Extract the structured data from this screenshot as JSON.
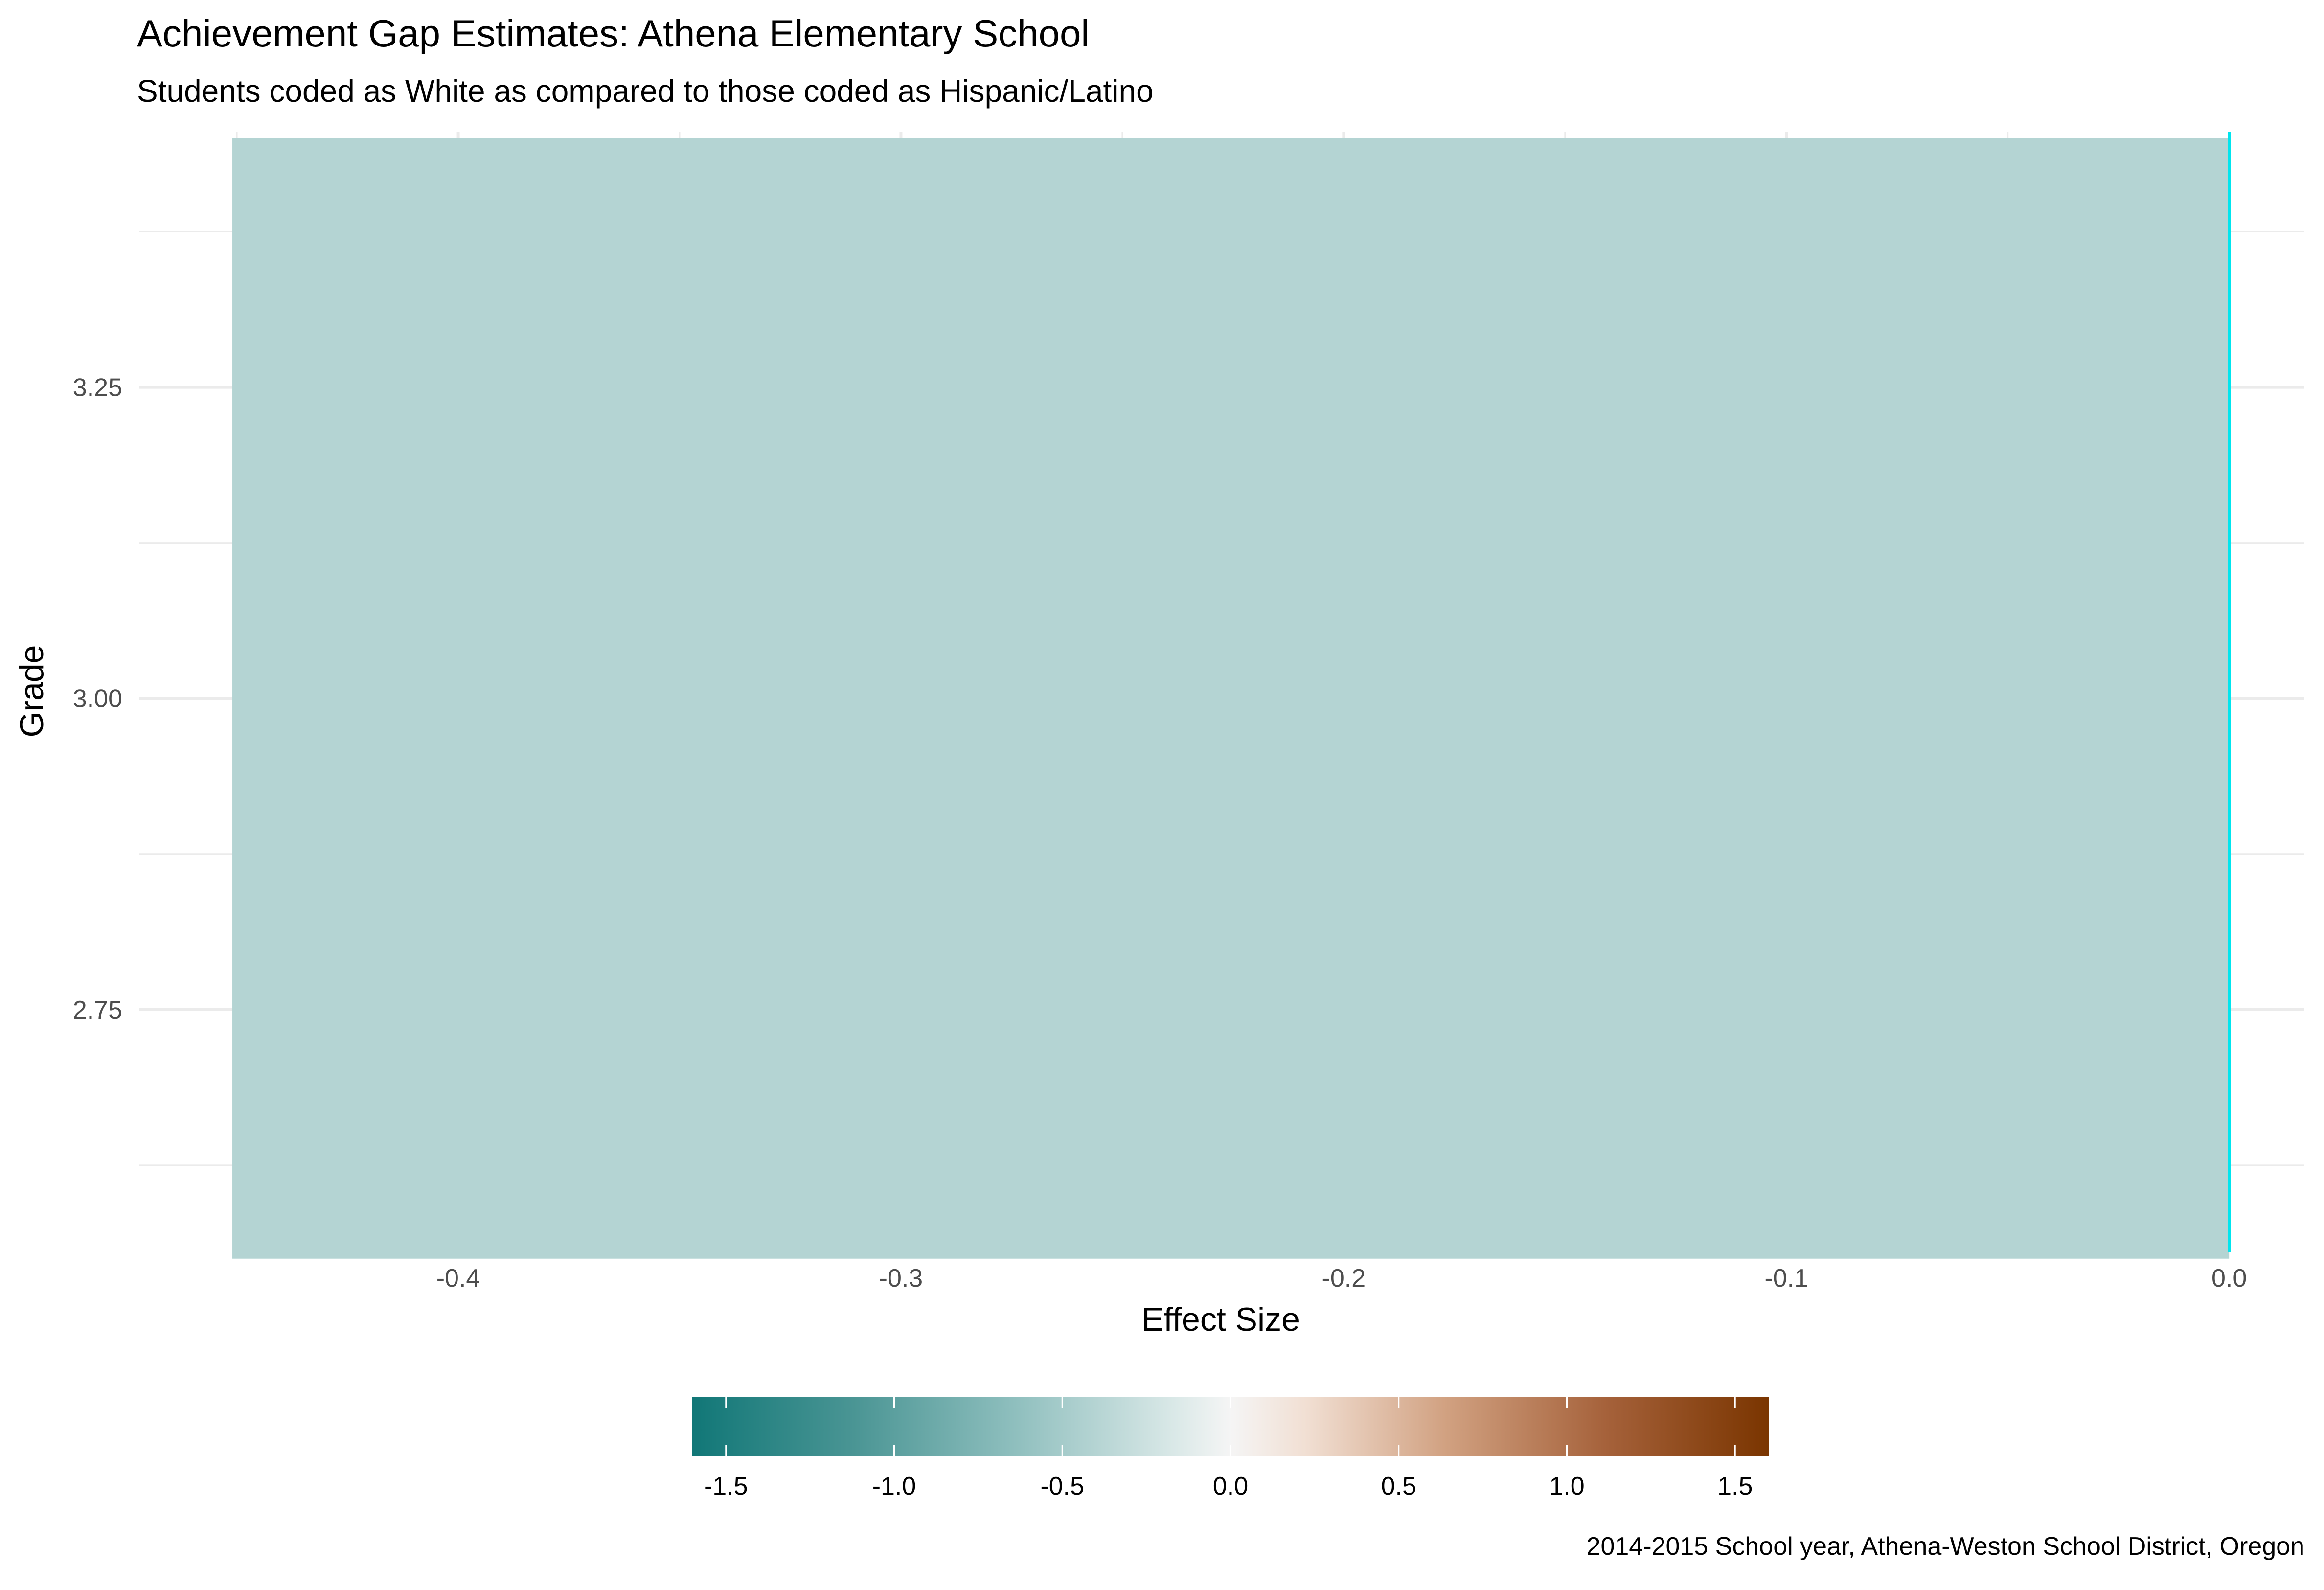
{
  "chart_data": {
    "type": "bar",
    "title": "Achievement Gap Estimates: Athena Elementary School",
    "subtitle": "Students coded as White as compared to those coded as Hispanic/Latino",
    "caption": "2014-2015 School year, Athena-Weston School District, Oregon",
    "xlabel": "Effect Size",
    "ylabel": "Grade",
    "orientation": "horizontal",
    "xlim": [
      -0.472,
      0.017
    ],
    "ylim": [
      2.555,
      3.455
    ],
    "x_ticks": [
      -0.4,
      -0.3,
      -0.2,
      -0.1,
      0.0
    ],
    "x_tick_labels": [
      "-0.4",
      "-0.3",
      "-0.2",
      "-0.1",
      "0.0"
    ],
    "y_ticks": [
      2.75,
      3.0,
      3.25
    ],
    "y_tick_labels": [
      "2.75",
      "3.00",
      "3.25"
    ],
    "bars": [
      {
        "grade": 3,
        "value": -0.451,
        "fill": "#b4d4d3"
      }
    ],
    "reference_line": {
      "x": 0.0,
      "color": "#00e5ee"
    },
    "grid": true,
    "colors": {
      "grid": "#ebebeb",
      "bar": "#b4d4d3",
      "reference": "#00e5ee"
    },
    "legend": {
      "position": "bottom",
      "type": "colorbar",
      "range": [
        -1.6,
        1.6
      ],
      "breaks": [
        -1.5,
        -1.0,
        -0.5,
        0.0,
        0.5,
        1.0,
        1.5
      ],
      "break_labels": [
        "-1.5",
        "-1.0",
        "-0.5",
        "0.0",
        "0.5",
        "1.0",
        "1.5"
      ],
      "palette": [
        "#01665e",
        "#35978f",
        "#80cdc1",
        "#c7eae5",
        "#f5f5f5",
        "#f6e8c3",
        "#dfc27d",
        "#bf812d",
        "#8c510a",
        "#7a3500"
      ]
    }
  }
}
